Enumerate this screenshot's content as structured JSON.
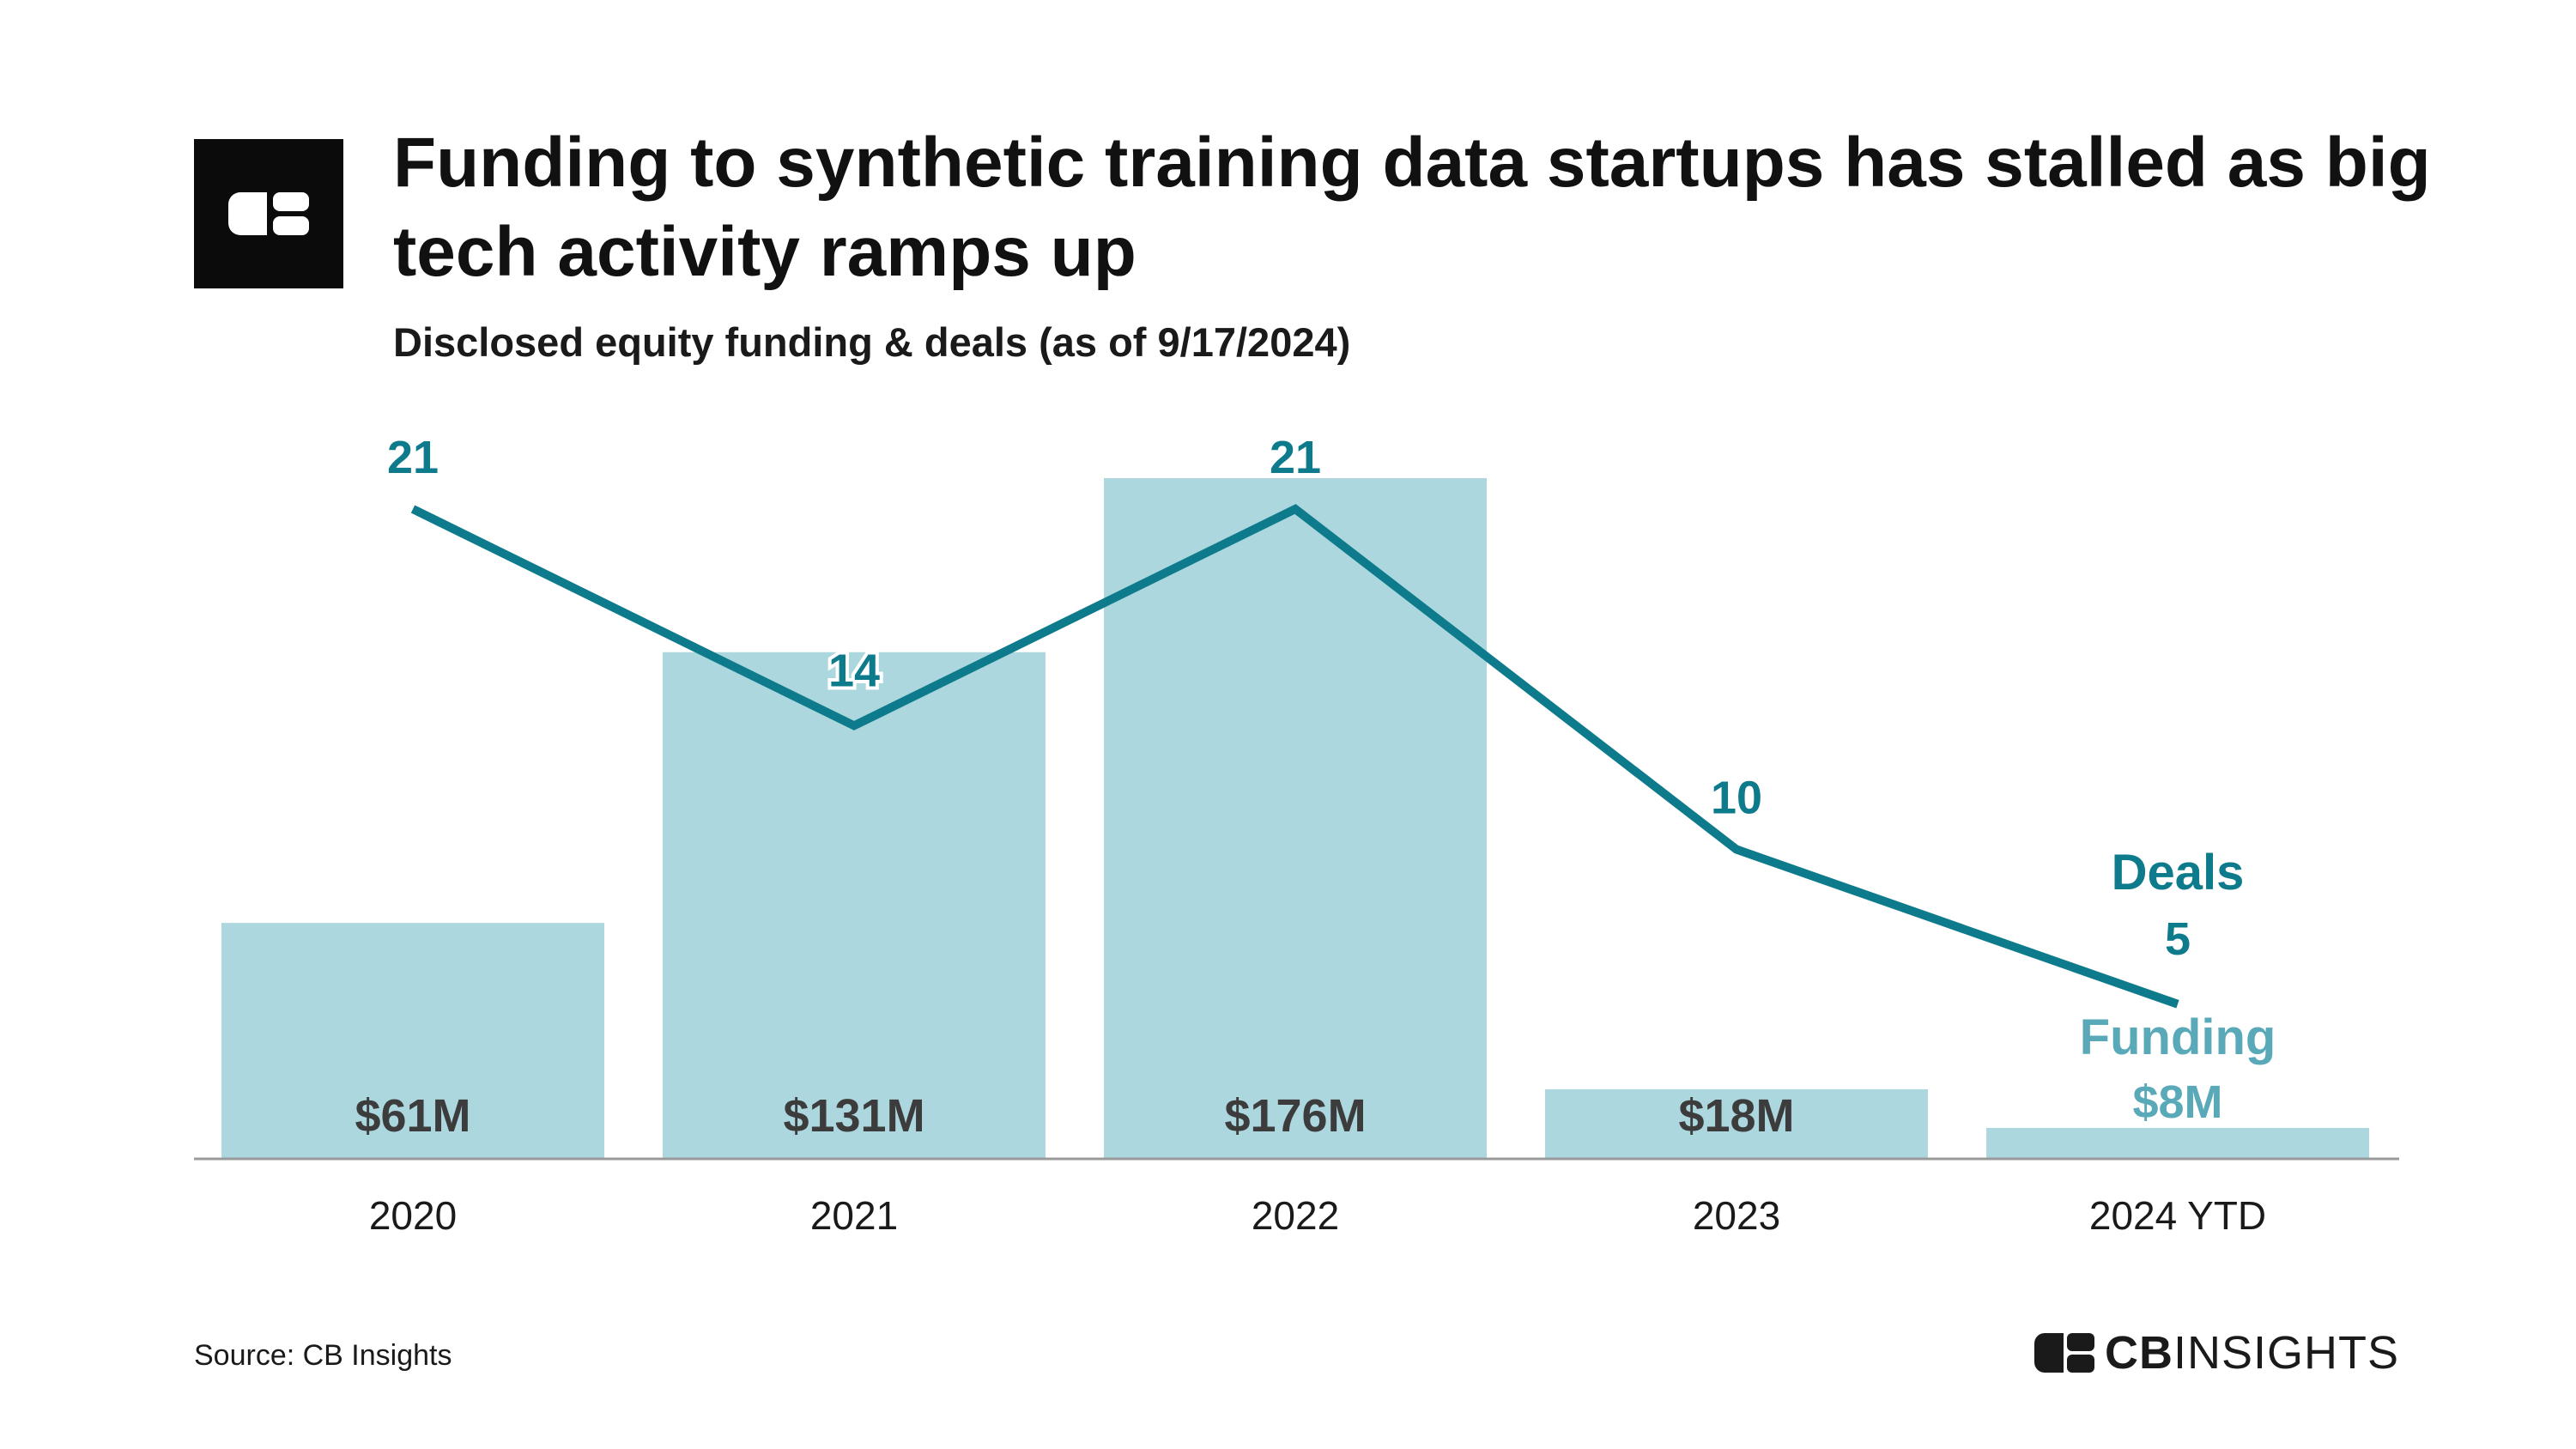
{
  "header": {
    "title": "Funding to synthetic training data startups has stalled as big tech activity ramps up",
    "subtitle": "Disclosed equity funding & deals (as of 9/17/2024)"
  },
  "footer": {
    "source": "Source: CB Insights",
    "brand_bold": "CB",
    "brand_light": "INSIGHTS"
  },
  "colors": {
    "bar": "#acd7df",
    "line": "#0e7b8c",
    "bar_label": "#3c3c3c",
    "funding_label": "#5aa9b8",
    "axis": "#9a9a9a"
  },
  "icons": {
    "logo": "cb-insights-logo-icon"
  },
  "chart_data": {
    "type": "bar+line",
    "categories": [
      "2020",
      "2021",
      "2022",
      "2023",
      "2024 YTD"
    ],
    "series": [
      {
        "name": "Funding",
        "type": "bar",
        "values": [
          61,
          131,
          176,
          18,
          8
        ],
        "labels": [
          "$61M",
          "$131M",
          "$176M",
          "$18M",
          "$8M"
        ]
      },
      {
        "name": "Deals",
        "type": "line",
        "values": [
          21,
          14,
          21,
          10,
          5
        ],
        "labels": [
          "21",
          "14",
          "21",
          "10",
          "5"
        ]
      }
    ],
    "funding_ylim": [
      0,
      185
    ],
    "deals_ylim": [
      0,
      27
    ],
    "grid": false,
    "legend": "inline-right"
  }
}
